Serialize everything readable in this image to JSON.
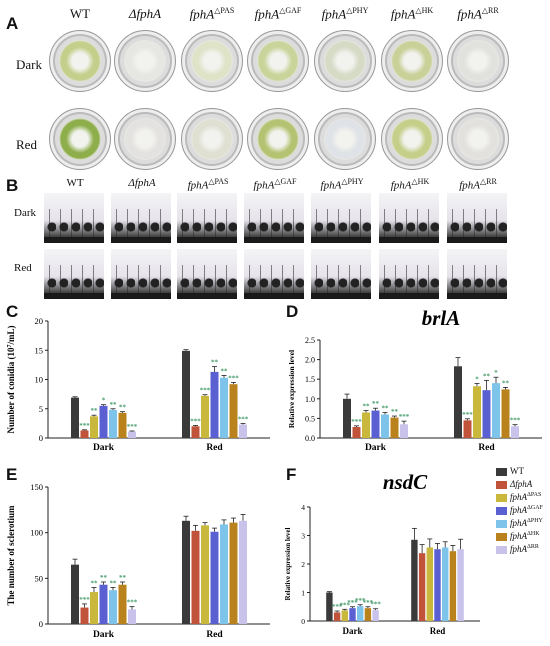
{
  "panels": {
    "a": "A",
    "b": "B",
    "c": "C",
    "d": "D",
    "e": "E",
    "f": "F"
  },
  "genotypes": [
    {
      "base": "WT",
      "sup": ""
    },
    {
      "base": "ΔfphA",
      "sup": ""
    },
    {
      "base": "fphA",
      "sup": "△PAS"
    },
    {
      "base": "fphA",
      "sup": "△GAF"
    },
    {
      "base": "fphA",
      "sup": "△PHY"
    },
    {
      "base": "fphA",
      "sup": "△HK"
    },
    {
      "base": "fphA",
      "sup": "△RR"
    }
  ],
  "conditions": [
    "Dark",
    "Red"
  ],
  "colors": {
    "series": [
      "#3a3a3a",
      "#c0533a",
      "#c9b83c",
      "#5a5fd1",
      "#7ec3ea",
      "#b9821c",
      "#c9c3ec"
    ],
    "plate_colony_dark": [
      "#c3cf8a",
      "#e6e6e2",
      "#dfe3c8",
      "#c8d49a",
      "#d6dbc6",
      "#c9d098",
      "#e1e1dd"
    ],
    "plate_colony_red": [
      "#8dae4a",
      "#e4e2e0",
      "#dfe0d2",
      "#b4c372",
      "#dfe2e6",
      "#c5cf8a",
      "#e2e1dd"
    ],
    "sig_star": "#4a9e6e"
  },
  "legend": [
    {
      "base": "WT",
      "sup": ""
    },
    {
      "base": "ΔfphA",
      "sup": ""
    },
    {
      "base": "fphA",
      "sup": "ΔPAS"
    },
    {
      "base": "fphA",
      "sup": "ΔGAF"
    },
    {
      "base": "fphA",
      "sup": "ΔPHY"
    },
    {
      "base": "fphA",
      "sup": "ΔHK"
    },
    {
      "base": "fphA",
      "sup": "ΔRR"
    }
  ],
  "chart_data": [
    {
      "panel": "C",
      "type": "bar",
      "title": "",
      "ylabel_main": "Number of conidia (10",
      "ylabel_sup": "7",
      "ylabel_end": "/mL)",
      "categories": [
        "Dark",
        "Red"
      ],
      "ylim": [
        0,
        20
      ],
      "yticks": [
        "0",
        "5",
        "10",
        "15",
        "20"
      ],
      "series": [
        {
          "values": [
            6.9,
            14.9
          ],
          "err": [
            0.15,
            0.2
          ],
          "sig": [
            "",
            ""
          ]
        },
        {
          "values": [
            1.3,
            2.0
          ],
          "err": [
            0.1,
            0.15
          ],
          "sig": [
            "***",
            "***"
          ]
        },
        {
          "values": [
            3.7,
            7.2
          ],
          "err": [
            0.2,
            0.2
          ],
          "sig": [
            "**",
            "***"
          ]
        },
        {
          "values": [
            5.5,
            11.3
          ],
          "err": [
            0.2,
            0.9
          ],
          "sig": [
            "*",
            "**"
          ]
        },
        {
          "values": [
            4.8,
            10.3
          ],
          "err": [
            0.2,
            0.4
          ],
          "sig": [
            "**",
            "**"
          ]
        },
        {
          "values": [
            4.3,
            9.2
          ],
          "err": [
            0.2,
            0.3
          ],
          "sig": [
            "**",
            "***"
          ]
        },
        {
          "values": [
            1.1,
            2.3
          ],
          "err": [
            0.1,
            0.2
          ],
          "sig": [
            "***",
            "***"
          ]
        }
      ]
    },
    {
      "panel": "D",
      "type": "bar",
      "title": "brlA",
      "ylabel_main": "Relative expression level",
      "categories": [
        "Dark",
        "Red"
      ],
      "ylim": [
        0,
        2.5
      ],
      "yticks": [
        "0.0",
        "0.5",
        "1.0",
        "1.5",
        "2.0",
        "2.5"
      ],
      "series": [
        {
          "values": [
            1.0,
            1.83
          ],
          "err": [
            0.12,
            0.22
          ],
          "sig": [
            "",
            ""
          ]
        },
        {
          "values": [
            0.28,
            0.45
          ],
          "err": [
            0.03,
            0.04
          ],
          "sig": [
            "***",
            "***"
          ]
        },
        {
          "values": [
            0.65,
            1.32
          ],
          "err": [
            0.05,
            0.07
          ],
          "sig": [
            "**",
            "*"
          ]
        },
        {
          "values": [
            0.7,
            1.22
          ],
          "err": [
            0.06,
            0.25
          ],
          "sig": [
            "**",
            "**"
          ]
        },
        {
          "values": [
            0.6,
            1.4
          ],
          "err": [
            0.05,
            0.15
          ],
          "sig": [
            "**",
            "*"
          ]
        },
        {
          "values": [
            0.52,
            1.24
          ],
          "err": [
            0.04,
            0.05
          ],
          "sig": [
            "**",
            "**"
          ]
        },
        {
          "values": [
            0.35,
            0.3
          ],
          "err": [
            0.08,
            0.04
          ],
          "sig": [
            "***",
            "***"
          ]
        }
      ]
    },
    {
      "panel": "E",
      "type": "bar",
      "title": "",
      "ylabel_main": "The number of sclerotium",
      "categories": [
        "Dark",
        "Red"
      ],
      "ylim": [
        0,
        150
      ],
      "yticks": [
        "0",
        "50",
        "100",
        "150"
      ],
      "series": [
        {
          "values": [
            65,
            113
          ],
          "err": [
            6,
            5
          ],
          "sig": [
            "",
            ""
          ]
        },
        {
          "values": [
            18,
            102
          ],
          "err": [
            4,
            6
          ],
          "sig": [
            "***",
            ""
          ]
        },
        {
          "values": [
            35,
            108
          ],
          "err": [
            5,
            3
          ],
          "sig": [
            "**",
            ""
          ]
        },
        {
          "values": [
            43,
            101
          ],
          "err": [
            3,
            4
          ],
          "sig": [
            "**",
            ""
          ]
        },
        {
          "values": [
            37,
            109
          ],
          "err": [
            3,
            5
          ],
          "sig": [
            "**",
            ""
          ]
        },
        {
          "values": [
            43,
            111
          ],
          "err": [
            3,
            5
          ],
          "sig": [
            "**",
            ""
          ]
        },
        {
          "values": [
            16,
            113
          ],
          "err": [
            3,
            7
          ],
          "sig": [
            "***",
            ""
          ]
        }
      ]
    },
    {
      "panel": "F",
      "type": "bar",
      "title": "nsdC",
      "ylabel_main": "Relative expression level",
      "categories": [
        "Dark",
        "Red"
      ],
      "ylim": [
        0,
        4
      ],
      "yticks": [
        "0",
        "1",
        "2",
        "3",
        "4"
      ],
      "series": [
        {
          "values": [
            1.0,
            2.85
          ],
          "err": [
            0.03,
            0.4
          ],
          "sig": [
            "",
            ""
          ]
        },
        {
          "values": [
            0.3,
            2.38
          ],
          "err": [
            0.05,
            0.3
          ],
          "sig": [
            "***",
            ""
          ]
        },
        {
          "values": [
            0.37,
            2.58
          ],
          "err": [
            0.04,
            0.3
          ],
          "sig": [
            "***",
            ""
          ]
        },
        {
          "values": [
            0.45,
            2.52
          ],
          "err": [
            0.05,
            0.2
          ],
          "sig": [
            "***",
            ""
          ]
        },
        {
          "values": [
            0.52,
            2.58
          ],
          "err": [
            0.05,
            0.2
          ],
          "sig": [
            "***",
            ""
          ]
        },
        {
          "values": [
            0.45,
            2.45
          ],
          "err": [
            0.05,
            0.2
          ],
          "sig": [
            "***",
            ""
          ]
        },
        {
          "values": [
            0.38,
            2.52
          ],
          "err": [
            0.05,
            0.35
          ],
          "sig": [
            "***",
            ""
          ]
        }
      ]
    }
  ]
}
